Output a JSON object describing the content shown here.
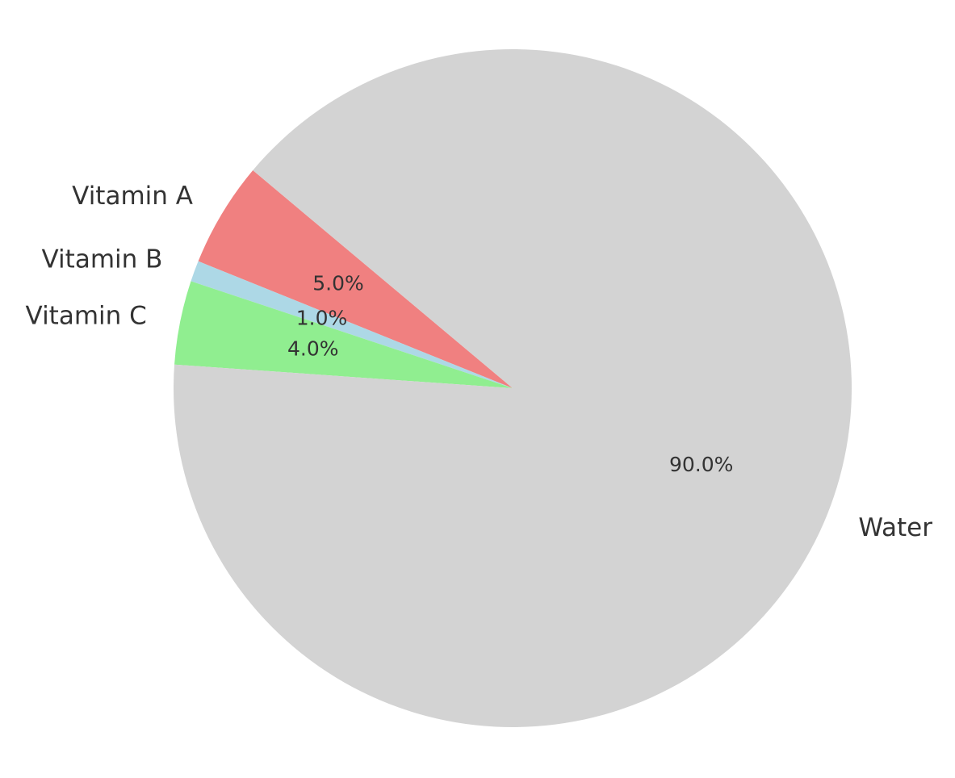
{
  "chart_data": {
    "type": "pie",
    "title": "",
    "start_angle_deg": 140,
    "direction": "counterclockwise",
    "slices": [
      {
        "label": "Vitamin A",
        "value": 5.0,
        "pct_label": "5.0%",
        "color": "#f08080"
      },
      {
        "label": "Vitamin B",
        "value": 1.0,
        "pct_label": "1.0%",
        "color": "#add8e6"
      },
      {
        "label": "Vitamin C",
        "value": 4.0,
        "pct_label": "4.0%",
        "color": "#90ee90"
      },
      {
        "label": "Water",
        "value": 90.0,
        "pct_label": "90.0%",
        "color": "#d3d3d3"
      }
    ]
  }
}
